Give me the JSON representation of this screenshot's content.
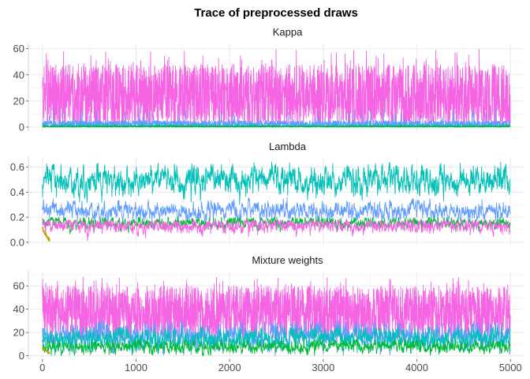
{
  "title": "Trace of preprocessed draws",
  "chart_data": {
    "type": "line",
    "title": "Trace of preprocessed draws",
    "xlim": [
      -150,
      5150
    ],
    "x_ticks": [
      "0",
      "1000",
      "2000",
      "3000",
      "4000",
      "5000"
    ],
    "x_tick_values": [
      0,
      1000,
      2000,
      3000,
      4000,
      5000
    ],
    "n_draws": 5000,
    "grid": true,
    "legend": "none",
    "colors": [
      "#C49A00",
      "#00BA38",
      "#00C0B8",
      "#619CFF",
      "#F564E3"
    ],
    "panels": [
      {
        "name": "Kappa",
        "ylim": [
          -3,
          64
        ],
        "y_ticks": [
          "0",
          "20",
          "40",
          "60"
        ],
        "y_tick_values": [
          0,
          20,
          40,
          60
        ],
        "series": [
          {
            "color": "#F564E3",
            "min": 0,
            "typical_low": 0,
            "typical_high": 48,
            "max": 61
          },
          {
            "color": "#619CFF",
            "min": 0,
            "typical_low": 0,
            "typical_high": 5,
            "max": 15
          },
          {
            "color": "#00C0B8",
            "min": 0,
            "typical_low": 0,
            "typical_high": 1.5,
            "max": 4
          },
          {
            "color": "#00BA38",
            "min": 0,
            "typical_low": 0,
            "typical_high": 1,
            "max": 2
          }
        ]
      },
      {
        "name": "Lambda",
        "ylim": [
          -0.02,
          0.68
        ],
        "y_ticks": [
          "0.0",
          "0.2",
          "0.4",
          "0.6"
        ],
        "y_tick_values": [
          0,
          0.2,
          0.4,
          0.6
        ],
        "series": [
          {
            "color": "#00C0B8",
            "mean": 0.49,
            "spread": 0.05,
            "max": 0.64
          },
          {
            "color": "#619CFF",
            "mean": 0.25,
            "spread": 0.03,
            "max": 0.36
          },
          {
            "color": "#00BA38",
            "mean": 0.155,
            "spread": 0.02,
            "max": 0.2
          },
          {
            "color": "#F564E3",
            "mean": 0.135,
            "spread": 0.025,
            "max": 0.18
          },
          {
            "color": "#C49A00",
            "burn_in_start": 0.12,
            "burn_in_end": 0.02,
            "burn_in_length": 80
          }
        ]
      },
      {
        "name": "Mixture weights",
        "ylim": [
          -3,
          73
        ],
        "y_ticks": [
          "0",
          "20",
          "40",
          "60"
        ],
        "y_tick_values": [
          0,
          20,
          40,
          60
        ],
        "series": [
          {
            "color": "#F564E3",
            "typical_low": 15,
            "typical_high": 60,
            "max": 68
          },
          {
            "color": "#619CFF",
            "mean": 17,
            "spread": 5,
            "max": 30
          },
          {
            "color": "#00C0B8",
            "mean": 15,
            "spread": 4,
            "max": 25
          },
          {
            "color": "#00BA38",
            "mean": 8,
            "spread": 2.5,
            "max": 14
          },
          {
            "color": "#C49A00",
            "burn_in_start": 8,
            "burn_in_end": 2,
            "burn_in_length": 80
          }
        ]
      }
    ]
  }
}
